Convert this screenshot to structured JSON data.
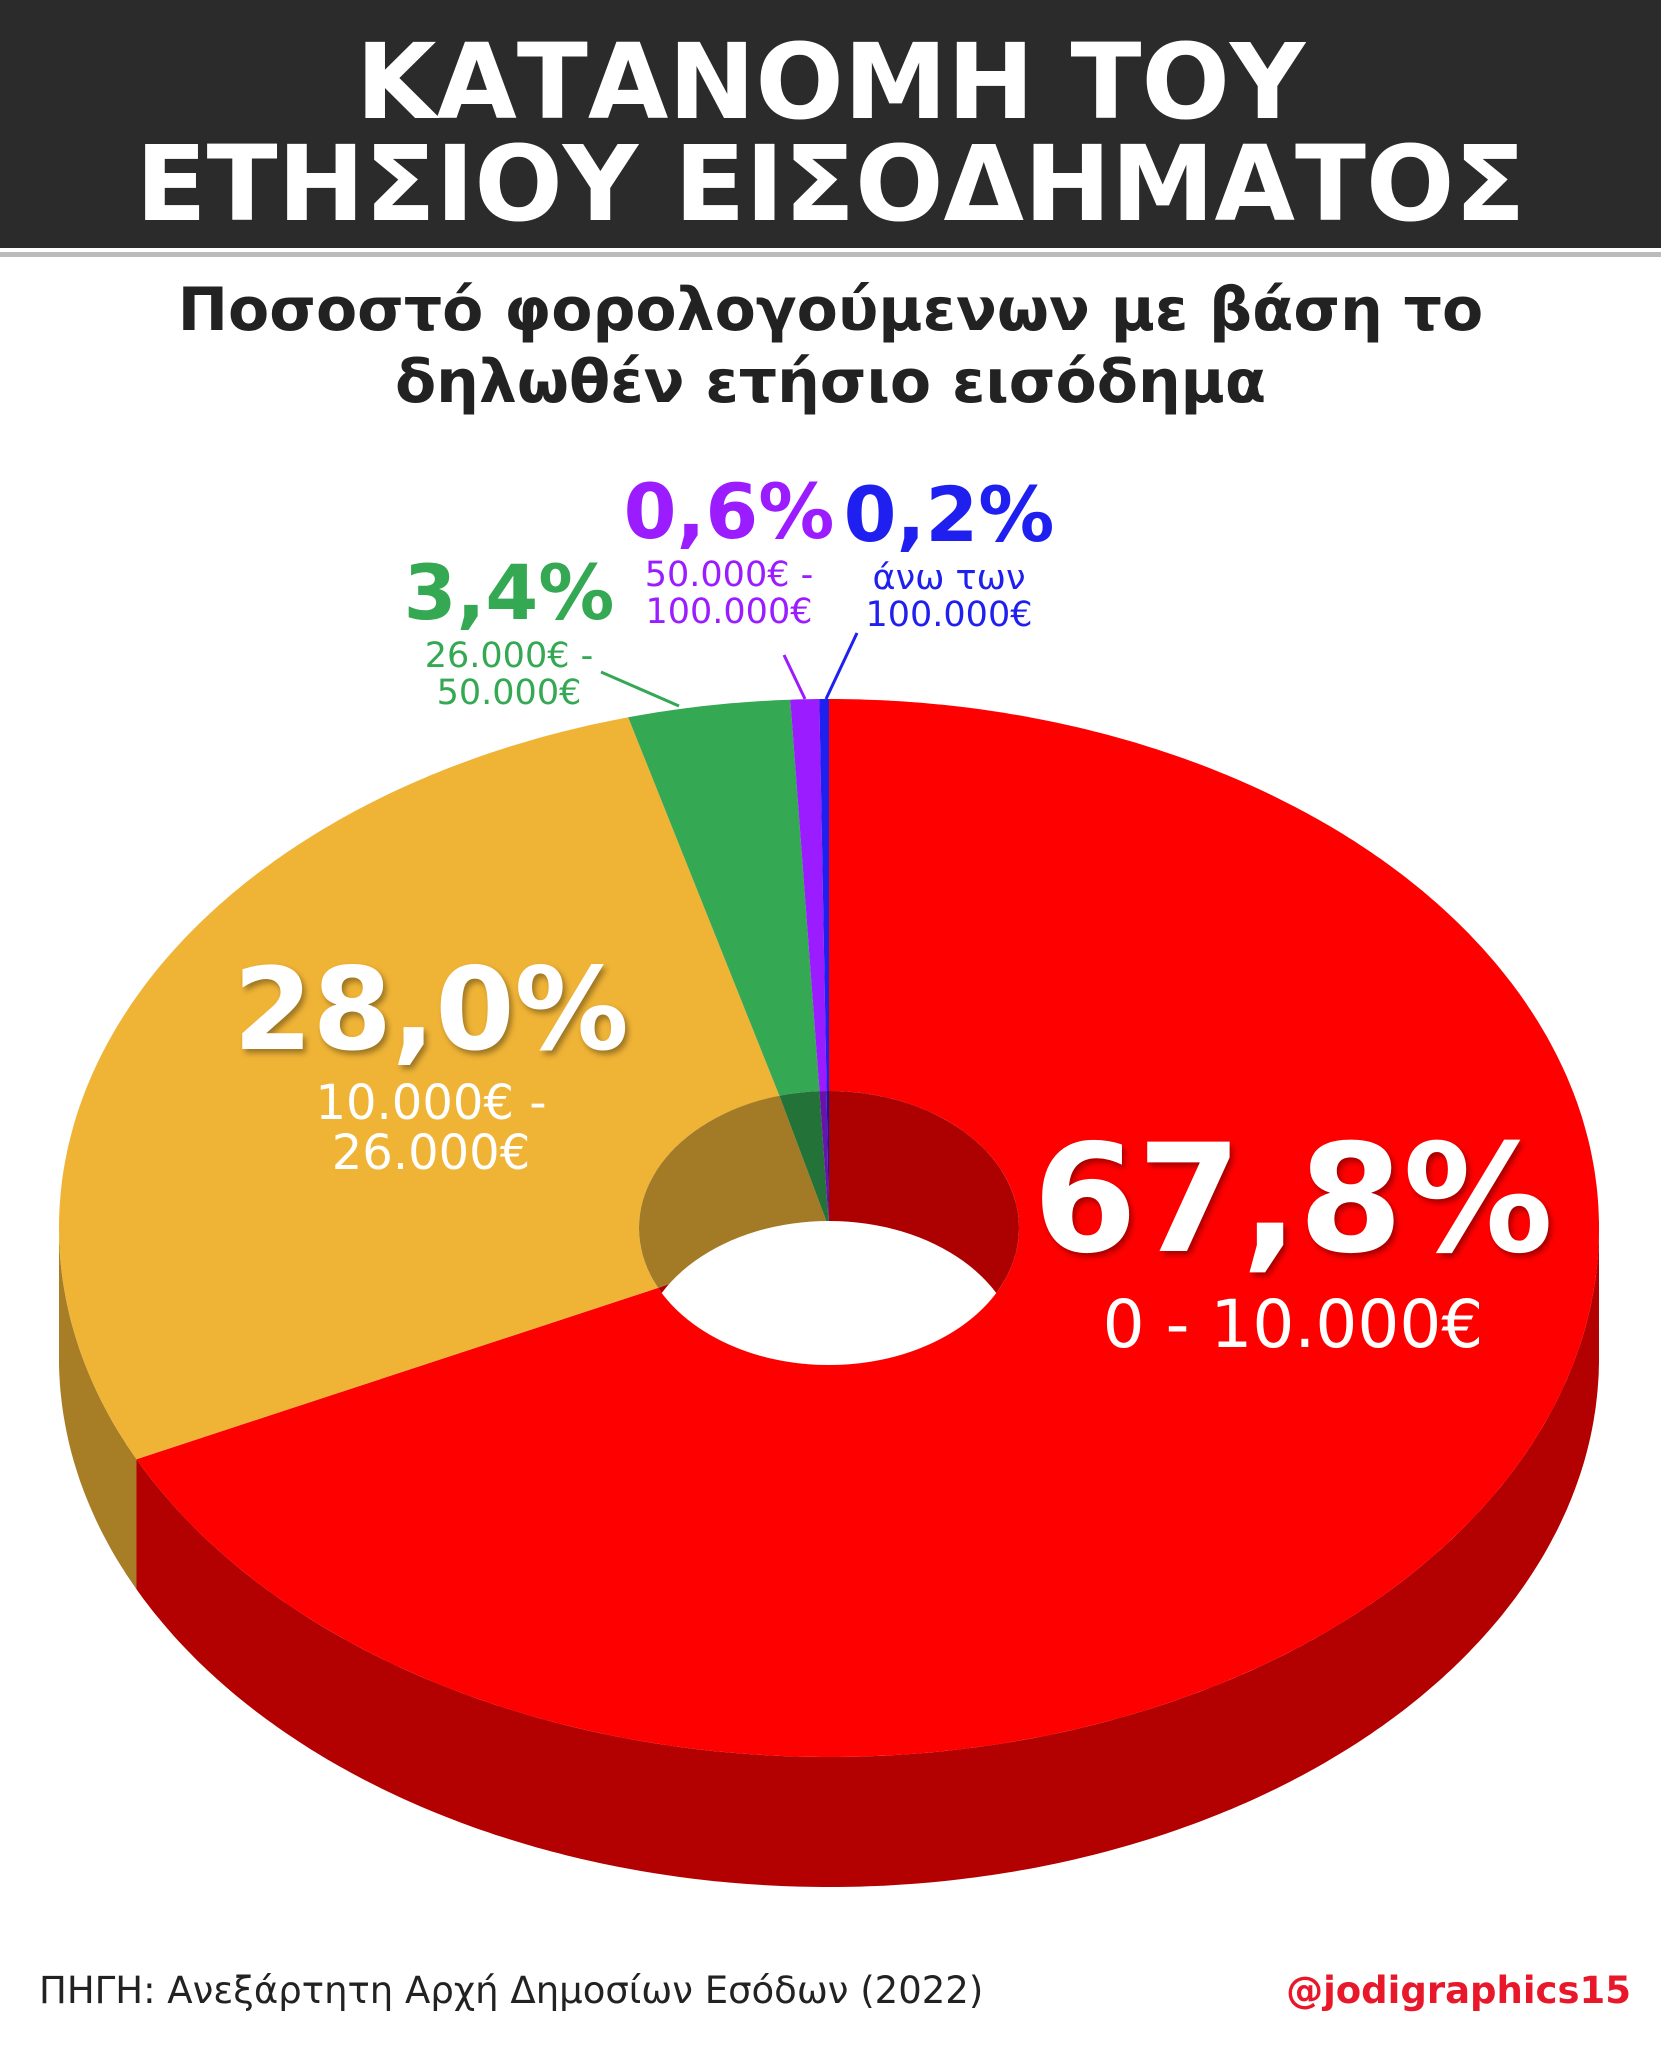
{
  "chart_data": {
    "type": "donut3d",
    "title": [
      "ΚΑΤΑΝΟΜΗ ΤΟΥ",
      "ΕΤΗΣΙΟΥ ΕΙΣΟΔΗΜΑΤΟΣ"
    ],
    "subtitle": [
      "Ποσοστό φορολογούμενων με βάση το",
      "δηλωθέν ετήσιο εισόδημα"
    ],
    "categories": [
      "0 - 10.000€",
      "10.000€ - 26.000€",
      "26.000€ - 50.000€",
      "50.000€ - 100.000€",
      "άνω των 100.000€"
    ],
    "values": [
      67.8,
      28.0,
      3.4,
      0.6,
      0.2
    ],
    "value_labels": [
      "67,8%",
      "28,0%",
      "3,4%",
      "0,6%",
      "0,2%"
    ],
    "colors": [
      "#ff0000",
      "#efb336",
      "#34a853",
      "#9b1cff",
      "#1f1fef"
    ],
    "source": "ΠΗΓΗ: Ανεξάρτητη Αρχή Δημοσίων Εσόδων (2022)",
    "credit": "@jodigraphics15"
  }
}
